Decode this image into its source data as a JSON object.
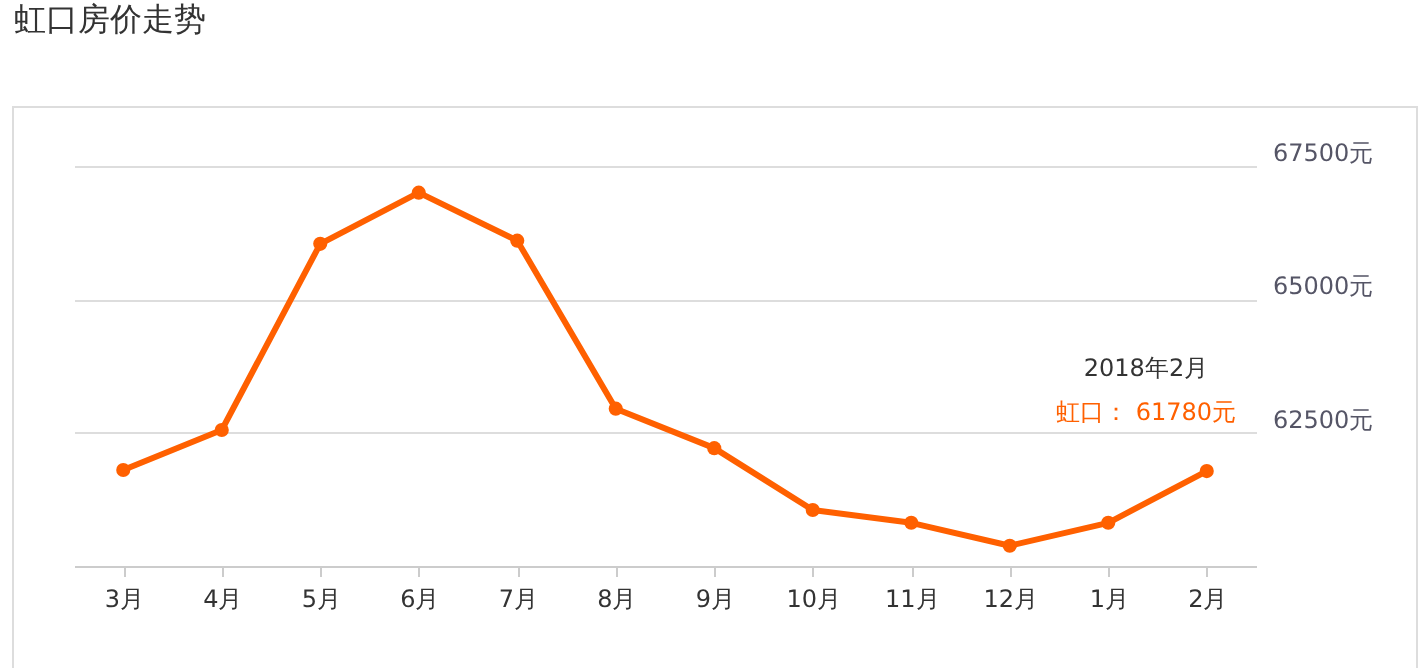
{
  "chart_data": {
    "type": "line",
    "title": "虹口房价走势",
    "categories": [
      "3月",
      "4月",
      "5月",
      "6月",
      "7月",
      "8月",
      "9月",
      "10月",
      "11月",
      "12月",
      "1月",
      "2月"
    ],
    "series": [
      {
        "color": "#ff6000",
        "values": [
          61800,
          62550,
          66040,
          67000,
          66100,
          62950,
          62210,
          61050,
          60810,
          60380,
          60810,
          61780
        ]
      }
    ],
    "ylim": [
      60000,
      67500
    ],
    "yticks": [
      {
        "value": 62500,
        "label": "62500元"
      },
      {
        "value": 65000,
        "label": "65000元"
      },
      {
        "value": 67500,
        "label": "67500元"
      }
    ],
    "grid": "y",
    "marker": "circle",
    "line_style": "solid",
    "legend": false,
    "annotations": [
      "2018年2月",
      "虹口： 61780元"
    ]
  }
}
